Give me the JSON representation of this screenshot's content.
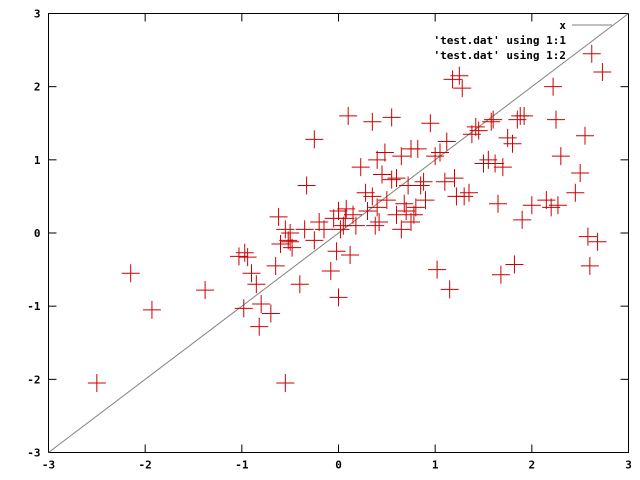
{
  "chart_data": {
    "type": "scatter",
    "title": "",
    "xlabel": "",
    "ylabel": "",
    "xlim": [
      -3,
      3
    ],
    "ylim": [
      -3,
      3
    ],
    "x_ticks": [
      "-3",
      "-2",
      "-1",
      "0",
      "1",
      "2",
      "3"
    ],
    "y_ticks": [
      "-3",
      "-2",
      "-1",
      "0",
      "1",
      "2",
      "3"
    ],
    "grid": false,
    "legend_position": "top-right",
    "series": [
      {
        "name": "x",
        "kind": "line",
        "color": "#808080",
        "points": [
          [
            -3,
            -3
          ],
          [
            3,
            3
          ]
        ]
      },
      {
        "name": "'test.dat' using 1:1",
        "kind": "none",
        "color": "#cc0000",
        "points": []
      },
      {
        "name": "'test.dat' using 1:2",
        "kind": "points",
        "marker": "plus",
        "color": "#cc0000",
        "points": [
          [
            -2.5,
            -2.05
          ],
          [
            -2.15,
            -0.55
          ],
          [
            -1.93,
            -1.05
          ],
          [
            -1.38,
            -0.78
          ],
          [
            -1.03,
            -0.32
          ],
          [
            -0.98,
            -1.03
          ],
          [
            -0.97,
            -0.27
          ],
          [
            -0.94,
            -0.33
          ],
          [
            -0.9,
            -0.55
          ],
          [
            -0.85,
            -0.7
          ],
          [
            -0.82,
            -1.28
          ],
          [
            -0.8,
            -0.97
          ],
          [
            -0.7,
            -1.1
          ],
          [
            -0.65,
            -0.45
          ],
          [
            -0.62,
            0.22
          ],
          [
            -0.6,
            -0.15
          ],
          [
            -0.55,
            0.05
          ],
          [
            -0.52,
            -0.1
          ],
          [
            -0.5,
            0.0
          ],
          [
            -0.5,
            -0.12
          ],
          [
            -0.48,
            -0.2
          ],
          [
            -0.55,
            -2.05
          ],
          [
            -0.4,
            -0.7
          ],
          [
            -0.35,
            0.05
          ],
          [
            -0.33,
            0.65
          ],
          [
            -0.25,
            -0.1
          ],
          [
            -0.2,
            0.15
          ],
          [
            -0.25,
            1.28
          ],
          [
            -0.15,
            0.05
          ],
          [
            -0.08,
            -0.52
          ],
          [
            -0.05,
            0.2
          ],
          [
            -0.02,
            -0.25
          ],
          [
            0.0,
            0.3
          ],
          [
            0.02,
            0.05
          ],
          [
            0.0,
            -0.88
          ],
          [
            0.05,
            0.1
          ],
          [
            0.07,
            0.2
          ],
          [
            0.08,
            0.33
          ],
          [
            0.1,
            1.6
          ],
          [
            0.12,
            -0.3
          ],
          [
            0.15,
            0.25
          ],
          [
            0.18,
            0.1
          ],
          [
            0.23,
            0.9
          ],
          [
            0.28,
            0.55
          ],
          [
            0.3,
            0.3
          ],
          [
            0.35,
            0.5
          ],
          [
            0.35,
            1.52
          ],
          [
            0.38,
            0.1
          ],
          [
            0.4,
            1.0
          ],
          [
            0.4,
            0.35
          ],
          [
            0.42,
            0.15
          ],
          [
            0.45,
            0.8
          ],
          [
            0.48,
            1.1
          ],
          [
            0.5,
            0.45
          ],
          [
            0.55,
            1.58
          ],
          [
            0.55,
            0.73
          ],
          [
            0.6,
            0.75
          ],
          [
            0.6,
            0.25
          ],
          [
            0.65,
            1.05
          ],
          [
            0.65,
            0.05
          ],
          [
            0.68,
            0.4
          ],
          [
            0.7,
            0.3
          ],
          [
            0.72,
            0.65
          ],
          [
            0.75,
            1.15
          ],
          [
            0.75,
            0.15
          ],
          [
            0.78,
            0.25
          ],
          [
            0.8,
            0.35
          ],
          [
            0.82,
            1.15
          ],
          [
            0.85,
            0.65
          ],
          [
            0.88,
            0.7
          ],
          [
            0.9,
            0.45
          ],
          [
            0.95,
            1.5
          ],
          [
            1.0,
            1.05
          ],
          [
            1.02,
            -0.5
          ],
          [
            1.05,
            1.1
          ],
          [
            1.1,
            0.7
          ],
          [
            1.12,
            1.25
          ],
          [
            1.15,
            -0.77
          ],
          [
            1.18,
            2.1
          ],
          [
            1.2,
            0.75
          ],
          [
            1.22,
            0.5
          ],
          [
            1.25,
            2.15
          ],
          [
            1.28,
            1.98
          ],
          [
            1.3,
            0.5
          ],
          [
            1.35,
            0.55
          ],
          [
            1.38,
            1.35
          ],
          [
            1.42,
            1.45
          ],
          [
            1.45,
            1.4
          ],
          [
            1.5,
            0.95
          ],
          [
            1.55,
            1.0
          ],
          [
            1.58,
            1.52
          ],
          [
            1.6,
            1.55
          ],
          [
            1.62,
            0.95
          ],
          [
            1.65,
            0.4
          ],
          [
            1.68,
            -0.57
          ],
          [
            1.7,
            0.9
          ],
          [
            1.75,
            1.3
          ],
          [
            1.8,
            1.22
          ],
          [
            1.82,
            -0.43
          ],
          [
            1.85,
            1.55
          ],
          [
            1.88,
            1.6
          ],
          [
            1.9,
            0.18
          ],
          [
            1.92,
            1.6
          ],
          [
            2.0,
            0.38
          ],
          [
            2.15,
            0.45
          ],
          [
            2.2,
            0.35
          ],
          [
            2.22,
            2.0
          ],
          [
            2.25,
            1.55
          ],
          [
            2.27,
            0.38
          ],
          [
            2.3,
            1.05
          ],
          [
            2.45,
            0.55
          ],
          [
            2.5,
            0.82
          ],
          [
            2.55,
            1.33
          ],
          [
            2.58,
            -0.05
          ],
          [
            2.6,
            -0.45
          ],
          [
            2.62,
            2.45
          ],
          [
            2.68,
            -0.12
          ],
          [
            2.73,
            2.2
          ]
        ]
      }
    ]
  }
}
